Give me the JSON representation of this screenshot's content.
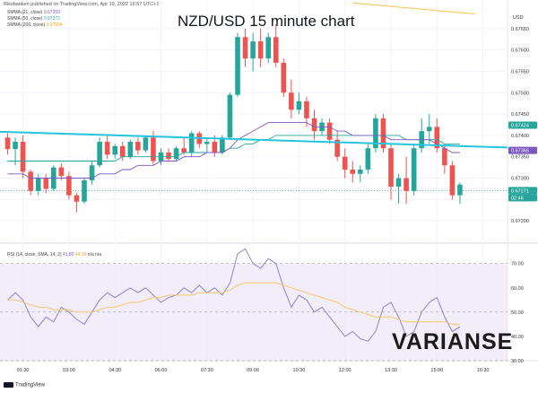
{
  "header": {
    "publisher": "Riksbanken published on TradingView.com, Apr 19, 2022 16:57 UTC+1",
    "currency": "USD"
  },
  "title": "NZD/USD 15 minute chart",
  "brand": "VARIANSE",
  "footer": "TradingView",
  "colors": {
    "up": "#26a69a",
    "down": "#ef5350",
    "sma21": "#7e57c2",
    "sma50": "#26a69a",
    "sma200": "#f5c053",
    "trendline": "#25c4dd",
    "rsi": "#8c84c8",
    "rsi_ma": "#f5c86a",
    "rsi_band": "#ede7f6"
  },
  "legend": [
    {
      "label": "SMMA (21, close)",
      "value": "0.67359",
      "color": "#7e57c2"
    },
    {
      "label": "SMMA (50, close)",
      "value": "0.67372",
      "color": "#26a69a"
    },
    {
      "label": "SMMA (200, close)",
      "value": "0.67684",
      "color": "#f5c053"
    }
  ],
  "rsi_legend": {
    "label": "RSI (14, close, SMA, 14, 2)",
    "value": "41.80",
    "ma": "44.39",
    "extra": "n/a n/a"
  },
  "price_badges": [
    {
      "value": "0.67424",
      "color": "#26a69a"
    },
    {
      "value": "0.67365",
      "color": "#7e57c2"
    },
    {
      "value": "0.67271",
      "color": "#26a69a"
    },
    {
      "value": "02:46",
      "color": "#26a69a"
    }
  ],
  "chart_data": [
    {
      "type": "candlestick",
      "title": "NZD/USD 15 minute chart",
      "xlabel": "",
      "ylabel": "",
      "ylim": [
        0.6715,
        0.677
      ],
      "price_ticks": [
        "0.67650",
        "0.67600",
        "0.67550",
        "0.67500",
        "0.67450",
        "0.67400",
        "0.67350",
        "0.67300",
        "0.67250",
        "0.67200"
      ],
      "time_ticks": [
        "01:30",
        "03:00",
        "04:30",
        "06:00",
        "07:30",
        "09:00",
        "10:30",
        "12:00",
        "13:30",
        "15:00",
        "16:30"
      ],
      "time_tick_index": [
        2,
        8,
        14,
        20,
        26,
        32,
        38,
        44,
        50,
        56,
        62
      ],
      "candles": [
        [
          0.67395,
          0.67405,
          0.67355,
          0.67368
        ],
        [
          0.67368,
          0.67395,
          0.6733,
          0.67385
        ],
        [
          0.67385,
          0.674,
          0.673,
          0.67315
        ],
        [
          0.67315,
          0.6732,
          0.6726,
          0.6727
        ],
        [
          0.6727,
          0.6731,
          0.6726,
          0.673
        ],
        [
          0.673,
          0.6731,
          0.67265,
          0.67275
        ],
        [
          0.67275,
          0.6733,
          0.6727,
          0.67325
        ],
        [
          0.67325,
          0.67335,
          0.67295,
          0.67305
        ],
        [
          0.67305,
          0.67315,
          0.6725,
          0.6726
        ],
        [
          0.6726,
          0.67265,
          0.6722,
          0.67245
        ],
        [
          0.67245,
          0.673,
          0.6724,
          0.67295
        ],
        [
          0.67295,
          0.6734,
          0.67285,
          0.6733
        ],
        [
          0.6733,
          0.67395,
          0.67325,
          0.67385
        ],
        [
          0.67385,
          0.674,
          0.67345,
          0.67355
        ],
        [
          0.67355,
          0.6738,
          0.67345,
          0.67375
        ],
        [
          0.67375,
          0.67385,
          0.6734,
          0.6735
        ],
        [
          0.6735,
          0.6739,
          0.67345,
          0.67385
        ],
        [
          0.67385,
          0.67395,
          0.67355,
          0.67365
        ],
        [
          0.67365,
          0.674,
          0.6736,
          0.67395
        ],
        [
          0.67395,
          0.6741,
          0.6733,
          0.6734
        ],
        [
          0.6734,
          0.6737,
          0.6733,
          0.6736
        ],
        [
          0.6736,
          0.6737,
          0.6734,
          0.67345
        ],
        [
          0.67345,
          0.67375,
          0.6734,
          0.6737
        ],
        [
          0.6737,
          0.67395,
          0.67355,
          0.6736
        ],
        [
          0.6736,
          0.6741,
          0.6735,
          0.67405
        ],
        [
          0.67405,
          0.6741,
          0.6737,
          0.6738
        ],
        [
          0.6738,
          0.67395,
          0.6736,
          0.67385
        ],
        [
          0.67385,
          0.674,
          0.6735,
          0.6736
        ],
        [
          0.6736,
          0.674,
          0.67355,
          0.67395
        ],
        [
          0.67395,
          0.675,
          0.6739,
          0.67495
        ],
        [
          0.67495,
          0.6764,
          0.6749,
          0.6763
        ],
        [
          0.6763,
          0.6765,
          0.6756,
          0.6758
        ],
        [
          0.6758,
          0.6764,
          0.6755,
          0.6762
        ],
        [
          0.6762,
          0.6765,
          0.6756,
          0.6758
        ],
        [
          0.6758,
          0.6764,
          0.6757,
          0.6763
        ],
        [
          0.6763,
          0.6766,
          0.6756,
          0.6757
        ],
        [
          0.6757,
          0.6758,
          0.6749,
          0.675
        ],
        [
          0.675,
          0.6753,
          0.6744,
          0.6746
        ],
        [
          0.6746,
          0.675,
          0.6745,
          0.6748
        ],
        [
          0.6748,
          0.6749,
          0.6742,
          0.6744
        ],
        [
          0.6744,
          0.6746,
          0.6739,
          0.6741
        ],
        [
          0.6741,
          0.6744,
          0.674,
          0.6743
        ],
        [
          0.6743,
          0.6744,
          0.6738,
          0.6739
        ],
        [
          0.6739,
          0.6741,
          0.6734,
          0.6735
        ],
        [
          0.6735,
          0.6737,
          0.673,
          0.6732
        ],
        [
          0.6732,
          0.6734,
          0.6729,
          0.6731
        ],
        [
          0.6731,
          0.6733,
          0.6729,
          0.6732
        ],
        [
          0.6732,
          0.6738,
          0.6731,
          0.6737
        ],
        [
          0.6737,
          0.6745,
          0.6736,
          0.6744
        ],
        [
          0.6744,
          0.6745,
          0.6736,
          0.6737
        ],
        [
          0.6737,
          0.6738,
          0.6725,
          0.6728
        ],
        [
          0.6728,
          0.6731,
          0.6724,
          0.673
        ],
        [
          0.673,
          0.6735,
          0.6724,
          0.6727
        ],
        [
          0.6727,
          0.6738,
          0.6726,
          0.6737
        ],
        [
          0.6737,
          0.6744,
          0.6736,
          0.6741
        ],
        [
          0.6741,
          0.6745,
          0.6738,
          0.6742
        ],
        [
          0.6742,
          0.6744,
          0.6736,
          0.6737
        ],
        [
          0.6737,
          0.6738,
          0.6731,
          0.6733
        ],
        [
          0.6733,
          0.6734,
          0.6725,
          0.6726
        ],
        [
          0.6726,
          0.6729,
          0.6724,
          0.67285
        ]
      ],
      "sma21": [
        0.6731,
        0.6731,
        0.6731,
        0.673,
        0.673,
        0.673,
        0.673,
        0.673,
        0.673,
        0.673,
        0.673,
        0.673,
        0.6731,
        0.6731,
        0.6731,
        0.6732,
        0.6732,
        0.6733,
        0.6733,
        0.6733,
        0.6734,
        0.6734,
        0.6734,
        0.6735,
        0.6735,
        0.6735,
        0.6736,
        0.6736,
        0.6736,
        0.6737,
        0.6739,
        0.674,
        0.6741,
        0.6742,
        0.6743,
        0.6743,
        0.6743,
        0.6743,
        0.6743,
        0.6743,
        0.6742,
        0.6742,
        0.6742,
        0.6741,
        0.6741,
        0.674,
        0.674,
        0.674,
        0.674,
        0.674,
        0.6739,
        0.6739,
        0.6739,
        0.6739,
        0.6739,
        0.6739,
        0.6738,
        0.6737,
        0.6736,
        0.6736
      ],
      "sma50": [
        0.6734,
        0.6734,
        0.6734,
        0.6734,
        0.6734,
        0.6734,
        0.6734,
        0.6734,
        0.6734,
        0.6734,
        0.6734,
        0.6734,
        0.6734,
        0.6734,
        0.6734,
        0.6735,
        0.6735,
        0.6735,
        0.6735,
        0.6735,
        0.6735,
        0.6735,
        0.6735,
        0.6736,
        0.6736,
        0.6736,
        0.6736,
        0.6736,
        0.6736,
        0.6737,
        0.6737,
        0.6738,
        0.6738,
        0.6739,
        0.6739,
        0.674,
        0.674,
        0.674,
        0.674,
        0.674,
        0.674,
        0.674,
        0.674,
        0.674,
        0.674,
        0.674,
        0.674,
        0.674,
        0.674,
        0.674,
        0.674,
        0.674,
        0.6739,
        0.6739,
        0.6739,
        0.6739,
        0.6739,
        0.6738,
        0.6738,
        0.6738
      ],
      "trendline": [
        [
          0,
          0.67408
        ],
        [
          61,
          0.67374
        ]
      ],
      "sma200_segment": [
        [
          45,
          0.6771
        ],
        [
          61,
          0.67684
        ]
      ],
      "reference_price": 0.67271
    },
    {
      "type": "line",
      "title": "",
      "series_label": "RSI (14, close, SMA, 14, 2)",
      "ylim": [
        30,
        78
      ],
      "ticks": [
        "70.00",
        "60.00",
        "50.00",
        "40.00",
        "30.00"
      ],
      "tick_values": [
        70,
        60,
        50,
        40,
        30
      ],
      "band": [
        30,
        70
      ],
      "midline": 50,
      "rsi": [
        55,
        58,
        55,
        48,
        44,
        48,
        46,
        52,
        50,
        47,
        45,
        50,
        55,
        58,
        56,
        58,
        60,
        58,
        60,
        57,
        54,
        56,
        57,
        60,
        58,
        61,
        58,
        60,
        57,
        62,
        74,
        76,
        70,
        68,
        72,
        70,
        60,
        52,
        57,
        55,
        50,
        52,
        48,
        44,
        40,
        42,
        39,
        38,
        42,
        52,
        54,
        48,
        40,
        42,
        50,
        54,
        56,
        48,
        42,
        44
      ],
      "rsi_ma": [
        55,
        55,
        54,
        53,
        52,
        52,
        51,
        51,
        51,
        50,
        50,
        50,
        51,
        52,
        52,
        53,
        54,
        54,
        55,
        56,
        56,
        57,
        57,
        57,
        57,
        58,
        58,
        58,
        58,
        59,
        61,
        62,
        62,
        62,
        62,
        62,
        61,
        60,
        59,
        58,
        57,
        56,
        55,
        54,
        52,
        51,
        50,
        49,
        48,
        48,
        48,
        47,
        46,
        46,
        46,
        46,
        46,
        46,
        45,
        45
      ]
    }
  ]
}
